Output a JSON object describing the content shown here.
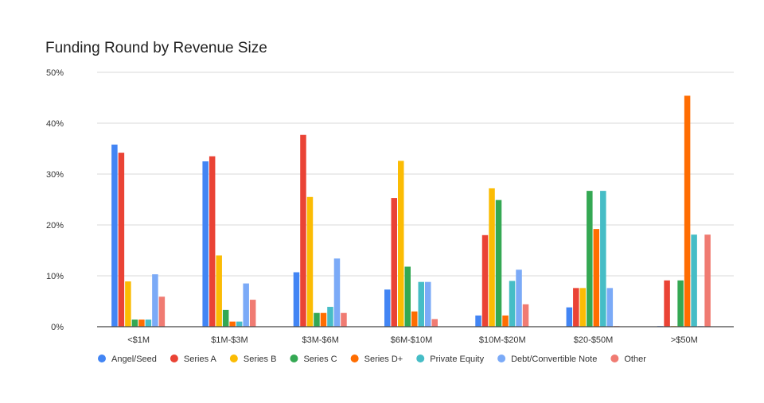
{
  "chart_data": {
    "type": "bar",
    "title": "Funding Round by Revenue Size",
    "xlabel": "",
    "ylabel": "",
    "ylim": [
      0,
      50
    ],
    "yticks": [
      {
        "value": 0,
        "label": "0%"
      },
      {
        "value": 10,
        "label": "10%"
      },
      {
        "value": 20,
        "label": "20%"
      },
      {
        "value": 30,
        "label": "30%"
      },
      {
        "value": 40,
        "label": "40%"
      },
      {
        "value": 50,
        "label": "50%"
      }
    ],
    "grid": true,
    "legend_position": "bottom",
    "categories": [
      "<$1M",
      "$1M-$3M",
      "$3M-$6M",
      "$6M-$10M",
      "$10M-$20M",
      "$20-$50M",
      ">$50M"
    ],
    "series": [
      {
        "name": "Angel/Seed",
        "color": "#4285F4",
        "values": [
          35.8,
          32.5,
          10.7,
          7.3,
          2.2,
          3.8,
          0
        ]
      },
      {
        "name": "Series A",
        "color": "#EA4335",
        "values": [
          34.2,
          33.5,
          37.7,
          25.3,
          18.0,
          7.6,
          9.1
        ]
      },
      {
        "name": "Series B",
        "color": "#FBBC04",
        "values": [
          8.9,
          14.0,
          25.5,
          32.6,
          27.2,
          7.6,
          0
        ]
      },
      {
        "name": "Series C",
        "color": "#34A853",
        "values": [
          1.4,
          3.3,
          2.7,
          11.8,
          24.9,
          26.7,
          9.1
        ]
      },
      {
        "name": "Series D+",
        "color": "#FF6D01",
        "values": [
          1.4,
          1.0,
          2.7,
          3.0,
          2.2,
          19.2,
          45.4
        ]
      },
      {
        "name": "Private Equity",
        "color": "#46BDC6",
        "values": [
          1.4,
          1.0,
          3.9,
          8.8,
          9.0,
          26.7,
          18.1
        ]
      },
      {
        "name": "Debt/Convertible Note",
        "color": "#7BAAF7",
        "values": [
          10.3,
          8.5,
          13.4,
          8.8,
          11.2,
          7.6,
          0
        ]
      },
      {
        "name": "Other",
        "color": "#F07B72",
        "values": [
          5.9,
          5.3,
          2.7,
          1.5,
          4.4,
          0,
          18.1
        ]
      }
    ]
  }
}
